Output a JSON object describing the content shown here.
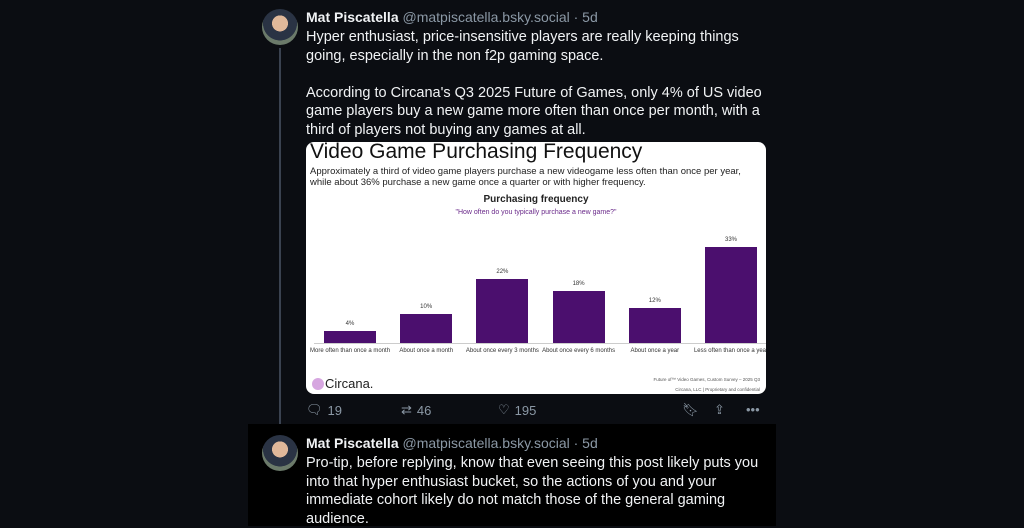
{
  "posts": [
    {
      "author": "Mat Piscatella",
      "handle": "@matpiscatella.bsky.social · 5d",
      "text": "Hyper enthusiast, price-insensitive players are really keeping things going, especially in the non f2p gaming space.\n\nAccording to Circana's Q3 2025 Future of Games, only 4% of US video game players buy a new game more often than once per month, with a third of players not buying any games at all.",
      "replies": "19",
      "reposts": "46",
      "likes": "195"
    },
    {
      "author": "Mat Piscatella",
      "handle": "@matpiscatella.bsky.social · 5d",
      "text": "Pro-tip, before replying, know that even seeing this post likely puts you into that hyper enthusiast bucket, so the actions of you and your immediate cohort likely do not match those of the general gaming audience."
    }
  ],
  "image": {
    "title": "Video Game Purchasing Frequency",
    "subtitle": "Approximately a third of video game players purchase a new videogame less often than once per year, while about 36% purchase a new game once a quarter or with higher frequency.",
    "logo": "Circana.",
    "source1": "Future of™ Video Games, Custom Survey – 2025 Q3",
    "source2": "Circana, LLC | Proprietary and confidential"
  },
  "chart_data": {
    "type": "bar",
    "title": "Purchasing frequency",
    "subtitle": "\"How often do you typically purchase a new game?\"",
    "categories": [
      "More often than once a month",
      "About once a month",
      "About once every 3 months",
      "About once every 6 months",
      "About once a year",
      "Less often than once a year"
    ],
    "values": [
      4,
      10,
      22,
      18,
      12,
      33
    ],
    "labels": [
      "4%",
      "10%",
      "22%",
      "18%",
      "12%",
      "33%"
    ],
    "bar_color": "#4b0f6e",
    "ylim": [
      0,
      33
    ]
  }
}
